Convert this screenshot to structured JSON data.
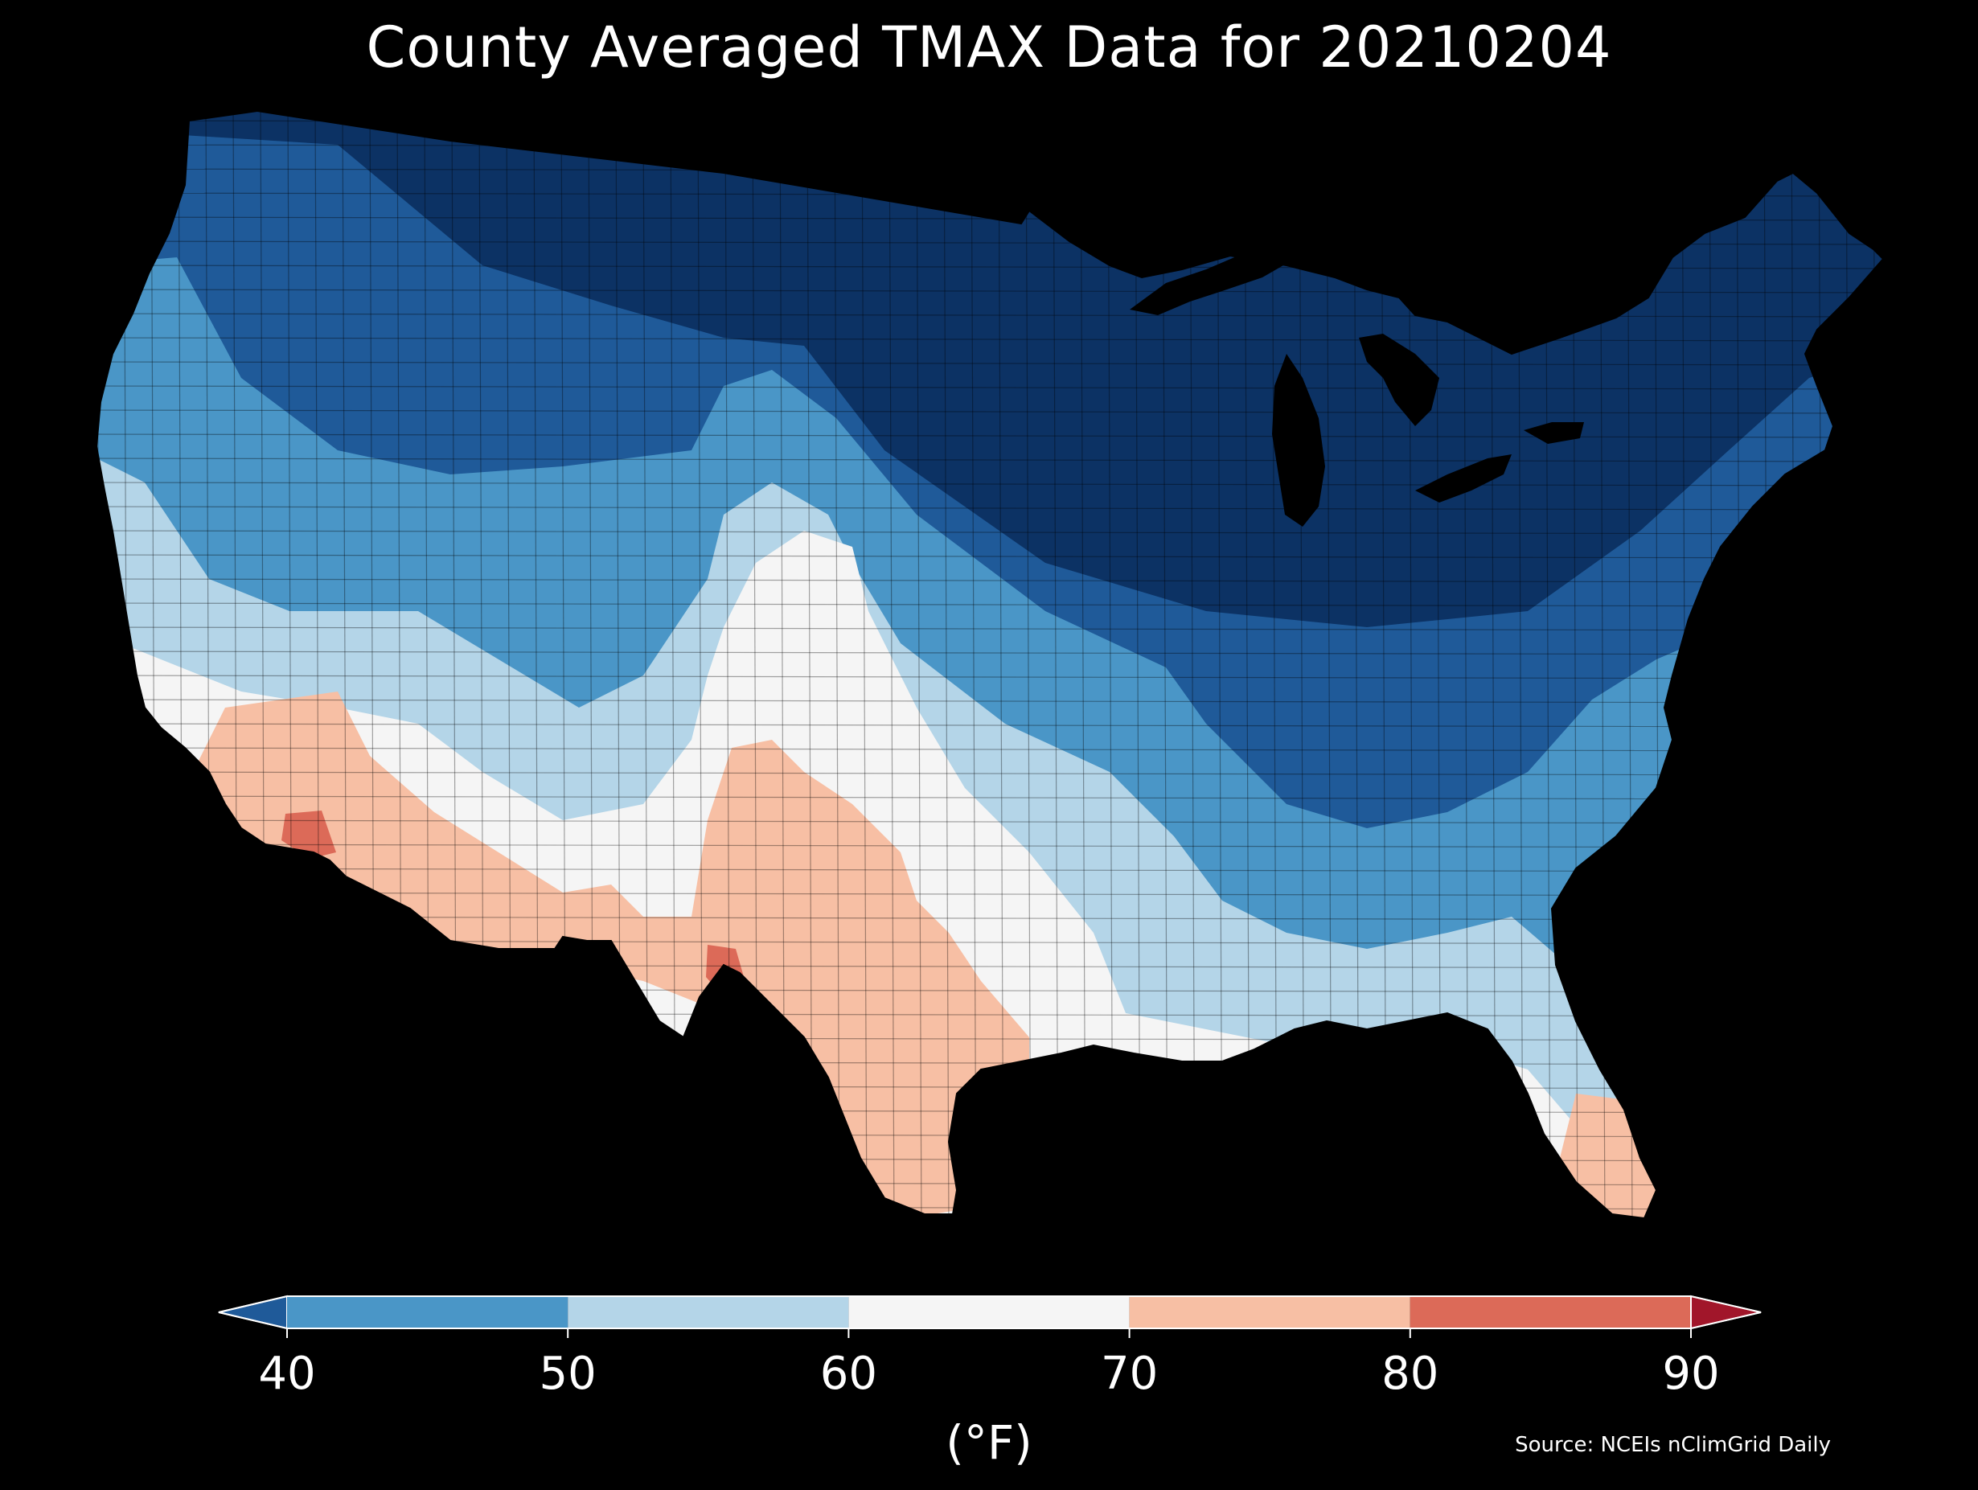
{
  "title": "County Averaged TMAX Data for 20210204",
  "colorbar": {
    "ticks": [
      "40",
      "50",
      "60",
      "70",
      "80",
      "90"
    ],
    "unit": "(°F)",
    "bins": [
      {
        "range": "<40",
        "color": "#1f5a99"
      },
      {
        "range": "40-50",
        "color": "#4a96c7"
      },
      {
        "range": "50-60",
        "color": "#b4d5e8"
      },
      {
        "range": "60-70",
        "color": "#f5f5f5"
      },
      {
        "range": "70-80",
        "color": "#f7bfa4"
      },
      {
        "range": "80-90",
        "color": "#dc6a58"
      },
      {
        "range": ">90",
        "color": "#a1162a"
      }
    ]
  },
  "source": "Source: NCEIs nClimGrid Daily",
  "map_colors": {
    "deep_cold": "#0c3264",
    "cold": "#1f5a99",
    "cool": "#4a96c7",
    "mild": "#b4d5e8",
    "neutral": "#f5f5f5",
    "warm": "#f7bfa4",
    "hot": "#dc6a58"
  }
}
